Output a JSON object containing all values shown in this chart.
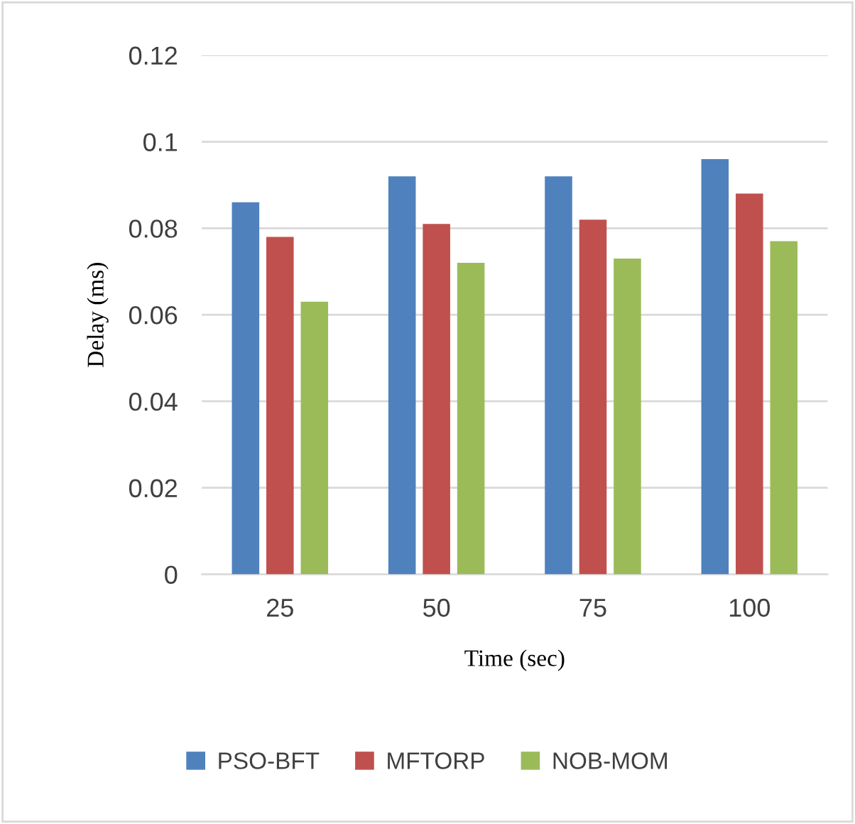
{
  "chart_data": {
    "type": "bar",
    "xlabel": "Time (sec)",
    "ylabel": "Delay (ms)",
    "categories": [
      "25",
      "50",
      "75",
      "100"
    ],
    "series": [
      {
        "name": "PSO-BFT",
        "color": "#4f81bd",
        "values": [
          0.086,
          0.092,
          0.092,
          0.096
        ]
      },
      {
        "name": "MFTORP",
        "color": "#c0504d",
        "values": [
          0.078,
          0.081,
          0.082,
          0.088
        ]
      },
      {
        "name": "NOB-MOM",
        "color": "#9bbb59",
        "values": [
          0.063,
          0.072,
          0.073,
          0.077
        ]
      }
    ],
    "ylim": [
      0,
      0.12
    ],
    "yticks": [
      0,
      0.02,
      0.04,
      0.06,
      0.08,
      0.1,
      0.12
    ],
    "grid": "y",
    "legend": "bottom"
  }
}
